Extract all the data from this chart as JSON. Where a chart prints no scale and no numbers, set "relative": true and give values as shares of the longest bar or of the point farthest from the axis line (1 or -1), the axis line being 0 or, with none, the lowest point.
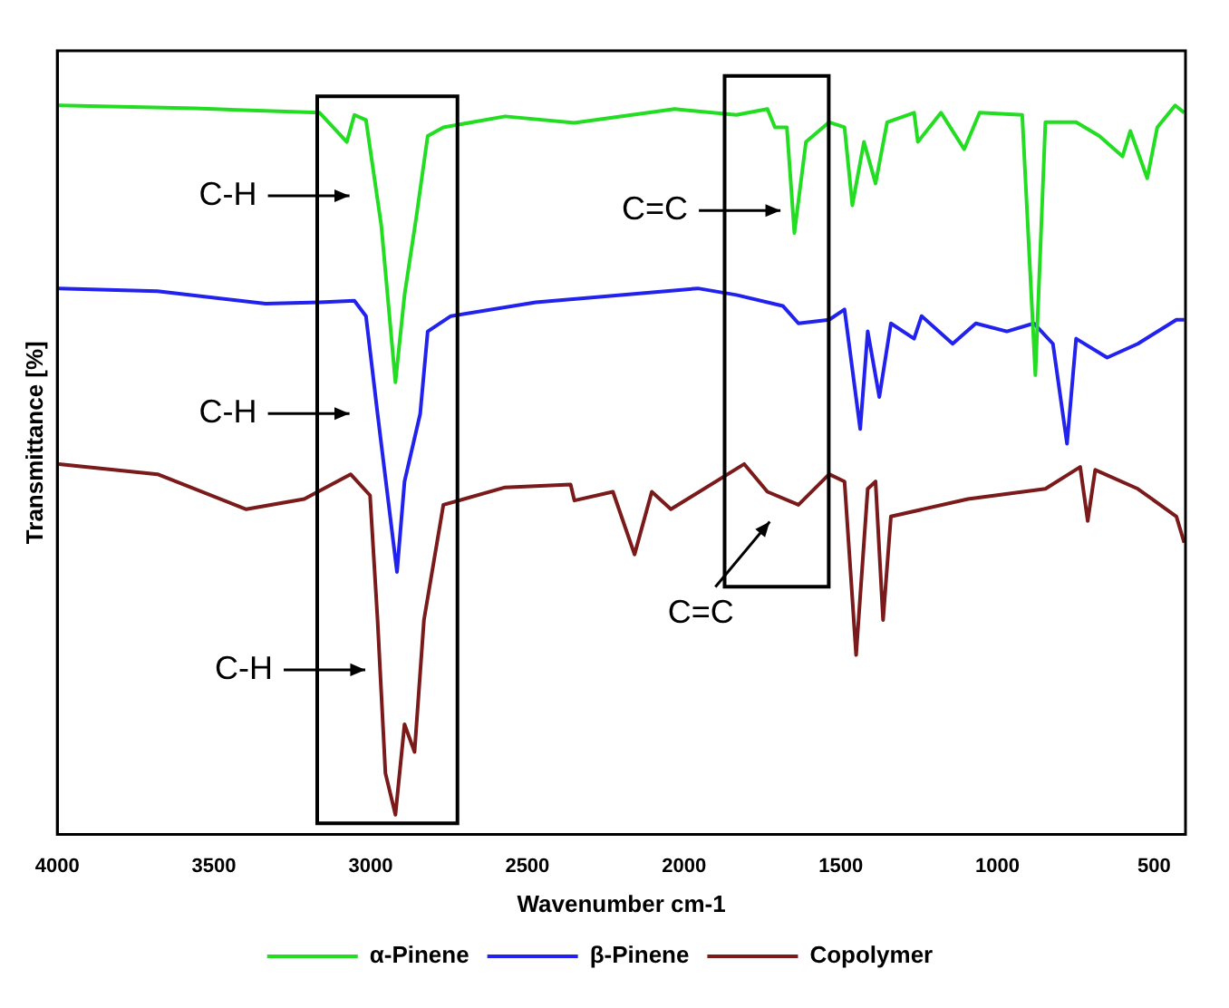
{
  "chart_data": {
    "type": "line",
    "relative": true,
    "xlabel": "Wavenumber cm-1",
    "ylabel": "Transmittance [%]",
    "xlim": [
      4000,
      400
    ],
    "xticks": [
      4000,
      3500,
      3000,
      2500,
      2000,
      1500,
      1000,
      500
    ],
    "grid": false,
    "legend": "bottom",
    "marker": "none",
    "line_style": "solid",
    "series": [
      {
        "name": "α-Pinene",
        "color": "#22dd22",
        "x": [
          3995,
          3560,
          3163,
          3076,
          3052,
          3015,
          2966,
          2921,
          2892,
          2855,
          2818,
          2768,
          2571,
          2350,
          2030,
          1833,
          1734,
          1710,
          1672,
          1648,
          1611,
          1537,
          1488,
          1463,
          1426,
          1389,
          1352,
          1266,
          1254,
          1180,
          1106,
          1057,
          921,
          879,
          847,
          749,
          675,
          601,
          576,
          522,
          490,
          433,
          404
        ],
        "values": [
          1.0,
          0.996,
          0.99,
          0.95,
          0.987,
          0.98,
          0.835,
          0.62,
          0.74,
          0.845,
          0.958,
          0.97,
          0.985,
          0.976,
          0.995,
          0.987,
          0.995,
          0.97,
          0.97,
          0.825,
          0.95,
          0.977,
          0.97,
          0.863,
          0.95,
          0.893,
          0.977,
          0.99,
          0.95,
          0.99,
          0.94,
          0.99,
          0.987,
          0.63,
          0.977,
          0.977,
          0.958,
          0.93,
          0.965,
          0.9,
          0.97,
          1.0,
          0.99
        ]
      },
      {
        "name": "β-Pinene",
        "color": "#2222ee",
        "x": [
          3995,
          3680,
          3335,
          3163,
          3052,
          3015,
          2978,
          2916,
          2892,
          2842,
          2818,
          2744,
          2473,
          1956,
          1833,
          1685,
          1635,
          1537,
          1488,
          1438,
          1414,
          1377,
          1340,
          1266,
          1242,
          1143,
          1069,
          970,
          884,
          823,
          778,
          749,
          650,
          552,
          429,
          404
        ],
        "values": [
          0.749,
          0.745,
          0.728,
          0.73,
          0.732,
          0.711,
          0.577,
          0.36,
          0.484,
          0.577,
          0.69,
          0.711,
          0.73,
          0.749,
          0.74,
          0.725,
          0.701,
          0.706,
          0.72,
          0.556,
          0.69,
          0.6,
          0.701,
          0.68,
          0.711,
          0.673,
          0.701,
          0.69,
          0.701,
          0.673,
          0.536,
          0.68,
          0.654,
          0.673,
          0.706,
          0.706
        ]
      },
      {
        "name": "Copolymer",
        "color": "#7a1a1a",
        "x": [
          3995,
          3680,
          3397,
          3212,
          3064,
          3002,
          2978,
          2953,
          2921,
          2892,
          2860,
          2830,
          2768,
          2571,
          2362,
          2350,
          2227,
          2158,
          2103,
          2042,
          1808,
          1734,
          1635,
          1537,
          1488,
          1451,
          1414,
          1389,
          1365,
          1340,
          1094,
          847,
          736,
          712,
          688,
          552,
          429,
          404
        ],
        "values": [
          0.508,
          0.494,
          0.446,
          0.46,
          0.494,
          0.465,
          0.294,
          0.084,
          0.027,
          0.151,
          0.113,
          0.294,
          0.452,
          0.476,
          0.48,
          0.458,
          0.47,
          0.384,
          0.47,
          0.446,
          0.508,
          0.47,
          0.452,
          0.494,
          0.484,
          0.246,
          0.474,
          0.484,
          0.294,
          0.436,
          0.46,
          0.474,
          0.504,
          0.43,
          0.5,
          0.474,
          0.436,
          0.4
        ]
      }
    ],
    "annotations": [
      "C-H",
      "C=C",
      "C-H",
      "C-H",
      "C=C"
    ]
  }
}
